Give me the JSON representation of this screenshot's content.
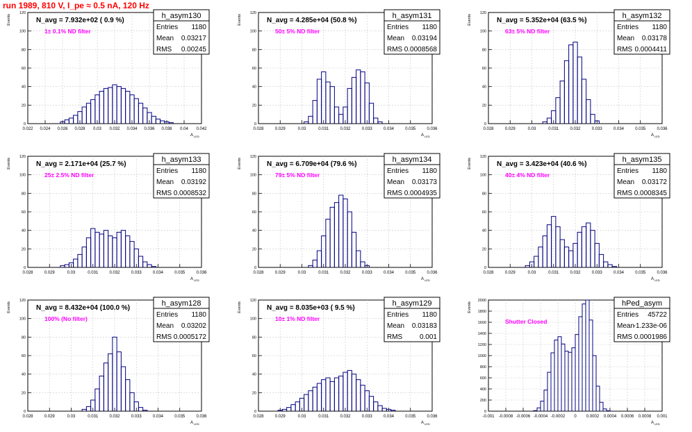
{
  "run_title": "run 1989,   810 V, I_pe ≈ 0.5 nA, 120 Hz",
  "y_axis_label": "Events",
  "x_axis_label_main": "A",
  "x_axis_label_sub": "LED",
  "stats_labels": {
    "entries": "Entries",
    "mean": "Mean",
    "rms": "RMS"
  },
  "colors": {
    "histogram": "#000080",
    "filter_text": "#ff00ff",
    "title_text": "#ff0000",
    "grid": "#c8c8c8"
  },
  "chart_data": [
    {
      "type": "bar",
      "panel": "h_asym130",
      "title": "h_asym130",
      "n_avg_label": "N_avg = 7.932e+02 ( 0.9 %)",
      "filter_label": "1± 0.1% ND filter",
      "stats": {
        "entries": "1180",
        "mean": "0.03217",
        "rms": "0.00245"
      },
      "xlim": [
        0.022,
        0.042
      ],
      "ylim": [
        0,
        120
      ],
      "x_ticks": [
        0.022,
        0.024,
        0.026,
        0.028,
        0.03,
        0.032,
        0.034,
        0.036,
        0.038,
        0.04,
        0.042
      ],
      "x_tick_labels": [
        "0.022",
        "0.024",
        "0.026",
        "0.028",
        "0.03",
        "0.032",
        "0.034",
        "0.036",
        "0.038",
        "0.04",
        "0.042"
      ],
      "y_ticks": [
        0,
        20,
        40,
        60,
        80,
        100,
        120
      ],
      "y_tick_labels": [
        "0",
        "20",
        "40",
        "60",
        "80",
        "100",
        "120"
      ],
      "bin_centers": [
        0.026,
        0.0265,
        0.027,
        0.0275,
        0.028,
        0.0285,
        0.029,
        0.0295,
        0.03,
        0.0305,
        0.031,
        0.0315,
        0.032,
        0.0325,
        0.033,
        0.0335,
        0.034,
        0.0345,
        0.035,
        0.0355,
        0.036,
        0.0365,
        0.037,
        0.0375,
        0.038,
        0.0385
      ],
      "values": [
        2,
        4,
        6,
        9,
        13,
        18,
        22,
        26,
        31,
        35,
        38,
        39,
        42,
        40,
        38,
        35,
        31,
        27,
        22,
        17,
        12,
        8,
        5,
        3,
        2,
        1
      ]
    },
    {
      "type": "bar",
      "panel": "h_asym131",
      "title": "h_asym131",
      "n_avg_label": "N_avg = 4.285e+04 (50.8 %)",
      "filter_label": "50± 5% ND filter",
      "stats": {
        "entries": "1180",
        "mean": "0.03194",
        "rms": "0.0008568"
      },
      "xlim": [
        0.028,
        0.036
      ],
      "ylim": [
        0,
        120
      ],
      "x_ticks": [
        0.028,
        0.029,
        0.03,
        0.031,
        0.032,
        0.033,
        0.034,
        0.035,
        0.036
      ],
      "x_tick_labels": [
        "0.028",
        "0.029",
        "0.03",
        "0.031",
        "0.032",
        "0.033",
        "0.034",
        "0.035",
        "0.036"
      ],
      "y_ticks": [
        0,
        20,
        40,
        60,
        80,
        100,
        120
      ],
      "y_tick_labels": [
        "0",
        "20",
        "40",
        "60",
        "80",
        "100",
        "120"
      ],
      "bin_centers": [
        0.0302,
        0.0304,
        0.0306,
        0.0308,
        0.031,
        0.0312,
        0.0314,
        0.0316,
        0.0318,
        0.032,
        0.0322,
        0.0324,
        0.0326,
        0.0328,
        0.033,
        0.0332,
        0.0334,
        0.0336
      ],
      "values": [
        2,
        8,
        25,
        48,
        56,
        45,
        40,
        18,
        10,
        18,
        38,
        50,
        58,
        56,
        44,
        22,
        6,
        2
      ]
    },
    {
      "type": "bar",
      "panel": "h_asym132",
      "title": "h_asym132",
      "n_avg_label": "N_avg = 5.352e+04 (63.5 %)",
      "filter_label": "63± 5% ND filter",
      "stats": {
        "entries": "1180",
        "mean": "0.03178",
        "rms": "0.0004411"
      },
      "xlim": [
        0.028,
        0.036
      ],
      "ylim": [
        0,
        120
      ],
      "x_ticks": [
        0.028,
        0.029,
        0.03,
        0.031,
        0.032,
        0.033,
        0.034,
        0.035,
        0.036
      ],
      "x_tick_labels": [
        "0.028",
        "0.029",
        "0.03",
        "0.031",
        "0.032",
        "0.033",
        "0.034",
        "0.035",
        "0.036"
      ],
      "y_ticks": [
        0,
        20,
        40,
        60,
        80,
        100,
        120
      ],
      "y_tick_labels": [
        "0",
        "20",
        "40",
        "60",
        "80",
        "100",
        "120"
      ],
      "bin_centers": [
        0.0306,
        0.0308,
        0.031,
        0.0312,
        0.0314,
        0.0316,
        0.0318,
        0.032,
        0.0322,
        0.0324,
        0.0326,
        0.0328,
        0.033
      ],
      "values": [
        2,
        6,
        14,
        28,
        46,
        68,
        85,
        88,
        72,
        48,
        26,
        10,
        3
      ]
    },
    {
      "type": "bar",
      "panel": "h_asym133",
      "title": "h_asym133",
      "n_avg_label": "N_avg = 2.171e+04 (25.7 %)",
      "filter_label": "25± 2.5% ND filter",
      "stats": {
        "entries": "1180",
        "mean": "0.03192",
        "rms": "0.0008532"
      },
      "xlim": [
        0.028,
        0.036
      ],
      "ylim": [
        0,
        120
      ],
      "x_ticks": [
        0.028,
        0.029,
        0.03,
        0.031,
        0.032,
        0.033,
        0.034,
        0.035,
        0.036
      ],
      "x_tick_labels": [
        "0.028",
        "0.029",
        "0.03",
        "0.031",
        "0.032",
        "0.033",
        "0.034",
        "0.035",
        "0.036"
      ],
      "y_ticks": [
        0,
        20,
        40,
        60,
        80,
        100,
        120
      ],
      "y_tick_labels": [
        "0",
        "20",
        "40",
        "60",
        "80",
        "100",
        "120"
      ],
      "bin_centers": [
        0.0296,
        0.0298,
        0.03,
        0.0302,
        0.0304,
        0.0306,
        0.0308,
        0.031,
        0.0312,
        0.0314,
        0.0316,
        0.0318,
        0.032,
        0.0322,
        0.0324,
        0.0326,
        0.0328,
        0.033,
        0.0332,
        0.0334,
        0.0336,
        0.0338
      ],
      "values": [
        2,
        3,
        5,
        9,
        14,
        22,
        32,
        42,
        38,
        36,
        40,
        34,
        32,
        38,
        40,
        34,
        28,
        20,
        12,
        6,
        3,
        1
      ]
    },
    {
      "type": "bar",
      "panel": "h_asym134",
      "title": "h_asym134",
      "n_avg_label": "N_avg = 6.709e+04 (79.6 %)",
      "filter_label": "79± 5% ND filter",
      "stats": {
        "entries": "1180",
        "mean": "0.03173",
        "rms": "0.0004935"
      },
      "xlim": [
        0.028,
        0.036
      ],
      "ylim": [
        0,
        120
      ],
      "x_ticks": [
        0.028,
        0.029,
        0.03,
        0.031,
        0.032,
        0.033,
        0.034,
        0.035,
        0.036
      ],
      "x_tick_labels": [
        "0.028",
        "0.029",
        "0.03",
        "0.031",
        "0.032",
        "0.033",
        "0.034",
        "0.035",
        "0.036"
      ],
      "y_ticks": [
        0,
        20,
        40,
        60,
        80,
        100,
        120
      ],
      "y_tick_labels": [
        "0",
        "20",
        "40",
        "60",
        "80",
        "100",
        "120"
      ],
      "bin_centers": [
        0.0304,
        0.0306,
        0.0308,
        0.031,
        0.0312,
        0.0314,
        0.0316,
        0.0318,
        0.032,
        0.0322,
        0.0324,
        0.0326,
        0.0328,
        0.033
      ],
      "values": [
        2,
        8,
        18,
        34,
        52,
        65,
        70,
        78,
        74,
        60,
        38,
        18,
        6,
        2
      ]
    },
    {
      "type": "bar",
      "panel": "h_asym135",
      "title": "h_asym135",
      "n_avg_label": "N_avg = 3.423e+04 (40.6 %)",
      "filter_label": "40± 4% ND filter",
      "stats": {
        "entries": "1180",
        "mean": "0.03172",
        "rms": "0.0008345"
      },
      "xlim": [
        0.028,
        0.036
      ],
      "ylim": [
        0,
        120
      ],
      "x_ticks": [
        0.028,
        0.029,
        0.03,
        0.031,
        0.032,
        0.033,
        0.034,
        0.035,
        0.036
      ],
      "x_tick_labels": [
        "0.028",
        "0.029",
        "0.03",
        "0.031",
        "0.032",
        "0.033",
        "0.034",
        "0.035",
        "0.036"
      ],
      "y_ticks": [
        0,
        20,
        40,
        60,
        80,
        100,
        120
      ],
      "y_tick_labels": [
        "0",
        "20",
        "40",
        "60",
        "80",
        "100",
        "120"
      ],
      "bin_centers": [
        0.0298,
        0.03,
        0.0302,
        0.0304,
        0.0306,
        0.0308,
        0.031,
        0.0312,
        0.0314,
        0.0316,
        0.0318,
        0.032,
        0.0322,
        0.0324,
        0.0326,
        0.0328,
        0.033,
        0.0332,
        0.0334,
        0.0336,
        0.0338
      ],
      "values": [
        2,
        6,
        12,
        22,
        34,
        46,
        55,
        44,
        30,
        22,
        18,
        26,
        38,
        44,
        48,
        40,
        26,
        14,
        6,
        3,
        1
      ]
    },
    {
      "type": "bar",
      "panel": "h_asym128",
      "title": "h_asym128",
      "n_avg_label": "N_avg = 8.432e+04 (100.0 %)",
      "filter_label": "100% (No filter)",
      "stats": {
        "entries": "1180",
        "mean": "0.03202",
        "rms": "0.0005172"
      },
      "xlim": [
        0.028,
        0.036
      ],
      "ylim": [
        0,
        120
      ],
      "x_ticks": [
        0.028,
        0.029,
        0.03,
        0.031,
        0.032,
        0.033,
        0.034,
        0.035,
        0.036
      ],
      "x_tick_labels": [
        "0.028",
        "0.029",
        "0.03",
        "0.031",
        "0.032",
        "0.033",
        "0.034",
        "0.035",
        "0.036"
      ],
      "y_ticks": [
        0,
        20,
        40,
        60,
        80,
        100,
        120
      ],
      "y_tick_labels": [
        "0",
        "20",
        "40",
        "60",
        "80",
        "100",
        "120"
      ],
      "bin_centers": [
        0.0306,
        0.0308,
        0.031,
        0.0312,
        0.0314,
        0.0316,
        0.0318,
        0.032,
        0.0322,
        0.0324,
        0.0326,
        0.0328,
        0.033,
        0.0332,
        0.0334
      ],
      "values": [
        2,
        5,
        12,
        24,
        38,
        52,
        62,
        80,
        64,
        48,
        34,
        20,
        10,
        4,
        1
      ]
    },
    {
      "type": "bar",
      "panel": "h_asym129",
      "title": "h_asym129",
      "n_avg_label": "N_avg = 8.035e+03 ( 9.5 %)",
      "filter_label": "10± 1% ND filter",
      "stats": {
        "entries": "1180",
        "mean": "0.03183",
        "rms": "0.001"
      },
      "xlim": [
        0.028,
        0.036
      ],
      "ylim": [
        0,
        120
      ],
      "x_ticks": [
        0.028,
        0.029,
        0.03,
        0.031,
        0.032,
        0.033,
        0.034,
        0.035,
        0.036
      ],
      "x_tick_labels": [
        "0.028",
        "0.029",
        "0.03",
        "0.031",
        "0.032",
        "0.033",
        "0.034",
        "0.035",
        "0.036"
      ],
      "y_ticks": [
        0,
        20,
        40,
        60,
        80,
        100,
        120
      ],
      "y_tick_labels": [
        "0",
        "20",
        "40",
        "60",
        "80",
        "100",
        "120"
      ],
      "bin_centers": [
        0.029,
        0.0292,
        0.0294,
        0.0296,
        0.0298,
        0.03,
        0.0302,
        0.0304,
        0.0306,
        0.0308,
        0.031,
        0.0312,
        0.0314,
        0.0316,
        0.0318,
        0.032,
        0.0322,
        0.0324,
        0.0326,
        0.0328,
        0.033,
        0.0332,
        0.0334,
        0.0336,
        0.0338,
        0.034,
        0.0342
      ],
      "values": [
        1,
        2,
        4,
        7,
        10,
        14,
        18,
        22,
        26,
        30,
        34,
        36,
        32,
        36,
        38,
        42,
        44,
        40,
        34,
        28,
        22,
        16,
        10,
        6,
        3,
        2,
        1
      ]
    },
    {
      "type": "bar",
      "panel": "hPed_asym",
      "title": "hPed_asym",
      "n_avg_label": "",
      "filter_label": "Shutter Closed",
      "stats": {
        "entries": "45722",
        "mean": "-1.233e-06",
        "rms": "0.0001986"
      },
      "xlim": [
        -0.001,
        0.001
      ],
      "ylim": [
        0,
        2000
      ],
      "x_ticks": [
        -0.001,
        -0.0008,
        -0.0006,
        -0.0004,
        -0.0002,
        0,
        0.0002,
        0.0004,
        0.0006,
        0.0008,
        0.001
      ],
      "x_tick_labels": [
        "-0.001",
        "-0.0008",
        "-0.0006",
        "-0.0004",
        "-0.0002",
        "0",
        "0.0002",
        "0.0004",
        "0.0006",
        "0.0008",
        "0.001"
      ],
      "y_ticks": [
        0,
        200,
        400,
        600,
        800,
        1000,
        1200,
        1400,
        1600,
        1800,
        2000
      ],
      "y_tick_labels": [
        "0",
        "200",
        "400",
        "600",
        "800",
        "1000",
        "1200",
        "1400",
        "1600",
        "1800",
        "2000"
      ],
      "bin_centers": [
        -0.00046,
        -0.00042,
        -0.00038,
        -0.00034,
        -0.0003,
        -0.00026,
        -0.00022,
        -0.00018,
        -0.00014,
        -0.0001,
        -6e-05,
        -2e-05,
        2e-05,
        6e-05,
        0.0001,
        0.00014,
        0.00018,
        0.00022,
        0.00026,
        0.0003,
        0.00034,
        0.00038
      ],
      "values": [
        10,
        60,
        180,
        380,
        700,
        1050,
        1280,
        1340,
        1210,
        1080,
        1060,
        1140,
        1380,
        1700,
        1930,
        2000,
        1640,
        1000,
        450,
        160,
        40,
        8
      ]
    }
  ]
}
